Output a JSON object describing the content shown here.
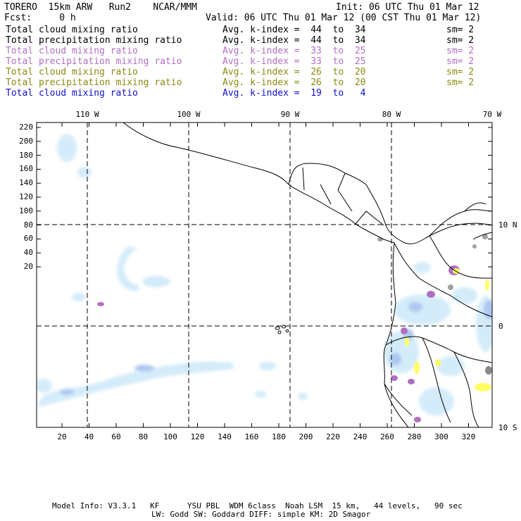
{
  "header": {
    "model": "TORERO  15km ARW   Run2    NCAR/MMM",
    "init": "Init: 06 UTC Thu 01 Mar 12",
    "fcst": "Fcst:     0 h",
    "valid": "Valid: 06 UTC Thu 01 Mar 12 (00 CST Thu 01 Mar 12)"
  },
  "fields": [
    {
      "name": "Total cloud mixing ratio",
      "index": "Avg. k-index =  44  to  34",
      "sm": "sm= 2",
      "color": "#000000"
    },
    {
      "name": "Total precipitation mixing ratio",
      "index": "Avg. k-index =  44  to  34",
      "sm": "sm= 2",
      "color": "#000000"
    },
    {
      "name": "Total cloud mixing ratio",
      "index": "Avg. k-index =  33  to  25",
      "sm": "sm= 2",
      "color": "#b070c0"
    },
    {
      "name": "Total precipitation mixing ratio",
      "index": "Avg. k-index =  33  to  25",
      "sm": "sm= 2",
      "color": "#b070c0"
    },
    {
      "name": "Total cloud mixing ratio",
      "index": "Avg. k-index =  26  to  20",
      "sm": "sm= 2",
      "color": "#8a8a10"
    },
    {
      "name": "Total precipitation mixing ratio",
      "index": "Avg. k-index =  26  to  20",
      "sm": "sm= 2",
      "color": "#8a8a10"
    },
    {
      "name": "Total cloud mixing ratio",
      "index": "Avg. k-index =  19  to   4",
      "sm": "",
      "color": "#1010d0"
    }
  ],
  "map": {
    "top_lon_labels": [
      "110 W",
      "100 W",
      "90 W",
      "80 W",
      "70 W"
    ],
    "right_lat_labels": [
      "10 N",
      "0",
      "10 S"
    ],
    "y_ticks": [
      "220",
      "200",
      "180",
      "160",
      "140",
      "120",
      "100",
      "80",
      "60",
      "40",
      "20"
    ],
    "x_ticks": [
      "20",
      "40",
      "60",
      "80",
      "100",
      "120",
      "140",
      "160",
      "180",
      "200",
      "220",
      "240",
      "260",
      "280",
      "300",
      "320"
    ]
  },
  "footer": {
    "line1": "Model Info: V3.3.1   KF      YSU PBL  WDM 6class  Noah LSM  15 km,   44 levels,   90 sec",
    "line2": "LW: Godd SW: Goddard DIFF: simple KM: 2D Smagor"
  }
}
